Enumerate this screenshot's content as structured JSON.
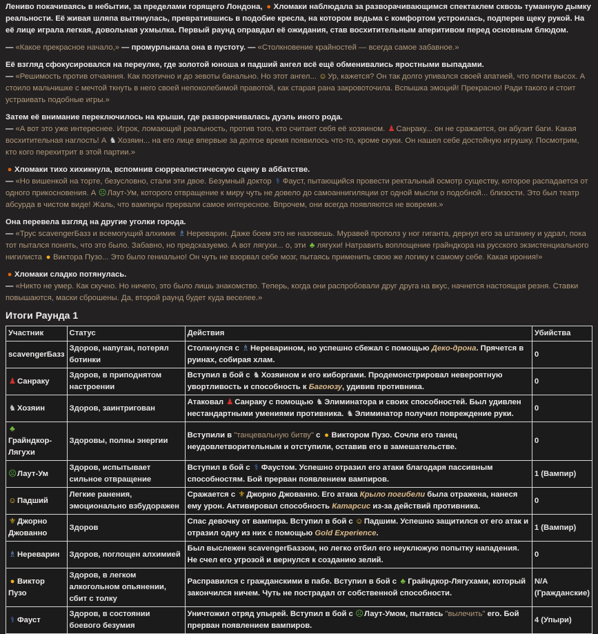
{
  "icons": {
    "pumpkin": {
      "glyph": "●",
      "color": "#e0660f"
    },
    "angel": {
      "glyph": "☺",
      "color": "#f0c040"
    },
    "dancer": {
      "glyph": "♟",
      "color": "#d03030"
    },
    "wolf": {
      "glyph": "♞",
      "color": "#c8c8c8"
    },
    "stethoscope": {
      "glyph": "⚕",
      "color": "#4a7ad0"
    },
    "nauseated": {
      "glyph": "☹",
      "color": "#5ab040"
    },
    "mage": {
      "glyph": "♗",
      "color": "#6aa0e0"
    },
    "frog": {
      "glyph": "♣",
      "color": "#7ac040"
    },
    "neutral-face": {
      "glyph": "●",
      "color": "#f0b020"
    },
    "fleur-de-lis": {
      "glyph": "⚜",
      "color": "#e0b020"
    }
  },
  "paragraphs": [
    [
      [
        {
          "n": "Лениво покачиваясь в небытии, за пределами горящего Лондона, "
        },
        {
          "e": "pumpkin"
        },
        {
          "n": "Хломаки наблюдала за разворачивающимся спектаклем сквозь туманную дымку реальности. Её живая шляпа вытянулась, превратившись в подобие кресла, на котором ведьма с комфортом устроилась, подперев щеку рукой. На её лице играла легкая, довольная ухмылка. Первый раунд оправдал её ожидания, став восхитительным аперитивом перед основным блюдом."
        }
      ]
    ],
    [
      [
        {
          "n": "— "
        },
        {
          "q": "«Какое прекрасное начало,»"
        },
        {
          "n": " — промурлыкала она в пустоту. — "
        },
        {
          "q": "«Столкновение крайностей — всегда самое забавное.»"
        }
      ]
    ],
    [
      [
        {
          "n": "Её взгляд сфокусировался на переулке, где золотой юноша и падший ангел всё ещё обменивались яростными выпадами."
        }
      ],
      [
        {
          "n": "— "
        },
        {
          "q": "«Решимость против отчаяния. Как поэтично и до зевоты банально. Но этот ангел... "
        },
        {
          "e": "angel"
        },
        {
          "q": "Ур, кажется? Он так долго упивался своей апатией, что почти высох. А стоило мальчишке с мечтой ткнуть в него своей непоколебимой правотой, как старая рана закровоточила. Вспышка эмоций! Прекрасно! Ради такого и стоит устраивать подобные игры.»"
        }
      ]
    ],
    [
      [
        {
          "n": "Затем её внимание переключилось на крыши, где разворачивалась дуэль иного рода."
        }
      ],
      [
        {
          "n": "— "
        },
        {
          "q": "«А вот это уже интереснее. Игрок, ломающий реальность, против того, кто считает себя её хозяином. "
        },
        {
          "e": "dancer"
        },
        {
          "q": "Санраку... он не сражается, он абузит баги. Какая восхитительная наглость! А "
        },
        {
          "e": "wolf"
        },
        {
          "q": "Хозяин... на его лице впервые за долгое время появилось что-то, кроме скуки. Он нашел себе достойную игрушку. Посмотрим, кто кого перехитрит в этой партии.»"
        }
      ]
    ],
    [
      [
        {
          "e": "pumpkin"
        },
        {
          "n": "Хломаки тихо хихикнула, вспомнив сюрреалистическую сцену в аббатстве."
        }
      ],
      [
        {
          "n": "— "
        },
        {
          "q": "«Но вишенкой на торте, безусловно, стали эти двое. Безумный доктор "
        },
        {
          "e": "stethoscope"
        },
        {
          "q": "Фауст, пытающийся провести ректальный осмотр существу, которое распадается от одного прикосновения. А "
        },
        {
          "e": "nauseated"
        },
        {
          "q": "Лаут-Ум, которого отвращение к миру чуть не довело до самоаннигиляции от одной мысли о подобной... близости. Это был театр абсурда в чистом виде! Жаль, что вампиры прервали самое интересное. Впрочем, они всегда появляются не вовремя.»"
        }
      ]
    ],
    [
      [
        {
          "n": "Она перевела взгляд на другие уголки города."
        }
      ],
      [
        {
          "n": "— "
        },
        {
          "q": "«Трус scavengerБазз и всемогущий алхимик "
        },
        {
          "e": "mage"
        },
        {
          "q": "Нереварин. Даже боем это не назовешь. Муравей прополз у ног гиганта, дернул его за штанину и удрал, пока тот пытался понять, что это было. Забавно, но предсказуемо. А вот лягухи... о, эти "
        },
        {
          "e": "frog"
        },
        {
          "q": "лягухи! Натравить воплощение грайндкора на русского экзистенциального нигилиста "
        },
        {
          "e": "neutral-face"
        },
        {
          "q": "Виктора Пузо... Это было гениально! Он чуть не взорвал себе мозг, пытаясь применить свою же логику к самому себе. Какая ирония!»"
        }
      ]
    ],
    [
      [
        {
          "e": "pumpkin"
        },
        {
          "n": "Хломаки сладко потянулась."
        }
      ],
      [
        {
          "n": "— "
        },
        {
          "q": "«Никто не умер. Как скучно. Но ничего, это было лишь знакомство. Теперь, когда они распробовали друг друга на вкус, начнется настоящая резня. Ставки повышаются, маски сброшены. Да, второй раунд будет куда веселее.»"
        }
      ]
    ]
  ],
  "summary_title": "Итоги Раунда 1",
  "table": {
    "headers": [
      "Участник",
      "Статус",
      "Действия",
      "Убийства"
    ],
    "rows": [
      {
        "participant": [
          {
            "n": "scavengerБазз"
          }
        ],
        "status": "Здоров, напуган, потерял ботинки",
        "actions": [
          {
            "n": "Столкнулся с "
          },
          {
            "e": "mage"
          },
          {
            "n": "Нереварином, но успешно сбежал с помощью "
          },
          {
            "i": "Деко-дрона"
          },
          {
            "n": ". Прячется в руинах, собирая хлам."
          }
        ],
        "kills": "0"
      },
      {
        "participant": [
          {
            "e": "dancer"
          },
          {
            "n": "Санраку"
          }
        ],
        "status": "Здоров, в приподнятом настроении",
        "actions": [
          {
            "n": "Вступил в бой с "
          },
          {
            "e": "wolf"
          },
          {
            "n": "Хозяином и его киборгами. Продемонстрировал невероятную увортливость и способность к "
          },
          {
            "i": "Багоюзу"
          },
          {
            "n": ", удивив противника."
          }
        ],
        "kills": "0"
      },
      {
        "participant": [
          {
            "e": "wolf"
          },
          {
            "n": "Хозяин"
          }
        ],
        "status": "Здоров, заинтригован",
        "actions": [
          {
            "n": "Атаковал "
          },
          {
            "e": "dancer"
          },
          {
            "n": "Санраку с помощью "
          },
          {
            "e": "wolf"
          },
          {
            "n": "Элиминатора и своих способностей. Был удивлен нестандартными умениями противника. "
          },
          {
            "e": "wolf"
          },
          {
            "n": "Элиминатор получил повреждение руки."
          }
        ],
        "kills": "0"
      },
      {
        "participant": [
          {
            "e": "frog"
          },
          {
            "br": true
          },
          {
            "n": "Грайндкор-Лягухи"
          }
        ],
        "status": "Здоровы, полны энергии",
        "actions": [
          {
            "n": "Вступили в "
          },
          {
            "q": "\"танцевальную битву\""
          },
          {
            "n": " с "
          },
          {
            "e": "neutral-face"
          },
          {
            "n": "Виктором Пузо. Сочли его танец неудовлетворительным и отступили, оставив его в замешательстве."
          }
        ],
        "kills": "0"
      },
      {
        "participant": [
          {
            "e": "nauseated"
          },
          {
            "n": "Лаут-Ум"
          }
        ],
        "status": "Здоров, испытывает сильное отвращение",
        "actions": [
          {
            "n": "Вступил в бой с "
          },
          {
            "e": "stethoscope"
          },
          {
            "n": "Фаустом. Успешно отразил его атаки благодаря пассивным способностям. Бой прерван появлением вампиров."
          }
        ],
        "kills": "1 (Вампир)"
      },
      {
        "participant": [
          {
            "e": "angel"
          },
          {
            "n": "Падший"
          }
        ],
        "status": "Легкие ранения, эмоционально взбудоражен",
        "actions": [
          {
            "n": "Сражается с "
          },
          {
            "e": "fleur-de-lis"
          },
          {
            "n": "Джорно Джованно. Его атака "
          },
          {
            "i": "Крыло погибели"
          },
          {
            "n": " была отражена, нанеся ему урон. Активировал способность "
          },
          {
            "i": "Катарсис"
          },
          {
            "n": " из-за действий противника."
          }
        ],
        "kills": "0"
      },
      {
        "participant": [
          {
            "e": "fleur-de-lis"
          },
          {
            "n": "Джорно Джованно"
          }
        ],
        "status": "Здоров",
        "actions": [
          {
            "n": "Спас девочку от вампира. Вступил в бой с "
          },
          {
            "e": "angel"
          },
          {
            "n": "Падшим. Успешно защитился от его атак и отразил одну из них с помощью "
          },
          {
            "i": "Gold Experience"
          },
          {
            "n": "."
          }
        ],
        "kills": "1 (Вампир)"
      },
      {
        "participant": [
          {
            "e": "mage"
          },
          {
            "n": "Нереварин"
          }
        ],
        "status": "Здоров, поглощен алхимией",
        "actions": [
          {
            "n": "Был выслежен scavengerБаззом, но легко отбил его неуклюжую попытку нападения. Не счел его угрозой и вернулся к созданию зелий."
          }
        ],
        "kills": "0"
      },
      {
        "participant": [
          {
            "e": "neutral-face"
          },
          {
            "n": "Виктор Пузо"
          }
        ],
        "status": "Здоров, в легком алкогольном опьянении, сбит с толку",
        "actions": [
          {
            "n": "Расправился с гражданскими в пабе. Вступил в бой с "
          },
          {
            "e": "frog"
          },
          {
            "n": "Грайндкор-Лягухами, который закончился ничем. Чуть не пострадал от собственной способности."
          }
        ],
        "kills": "N/A (Гражданские)"
      },
      {
        "participant": [
          {
            "e": "stethoscope"
          },
          {
            "n": "Фауст"
          }
        ],
        "status": "Здоров, в состоянии боевого безумия",
        "actions": [
          {
            "n": "Уничтожил отряд упырей. Вступил в бой с "
          },
          {
            "e": "nauseated"
          },
          {
            "n": "Лаут-Умом, пытаясь "
          },
          {
            "q": "\"вылечить\""
          },
          {
            "n": " его. Бой прерван появлением вампиров."
          }
        ],
        "kills": "4 (Упыри)"
      }
    ]
  }
}
